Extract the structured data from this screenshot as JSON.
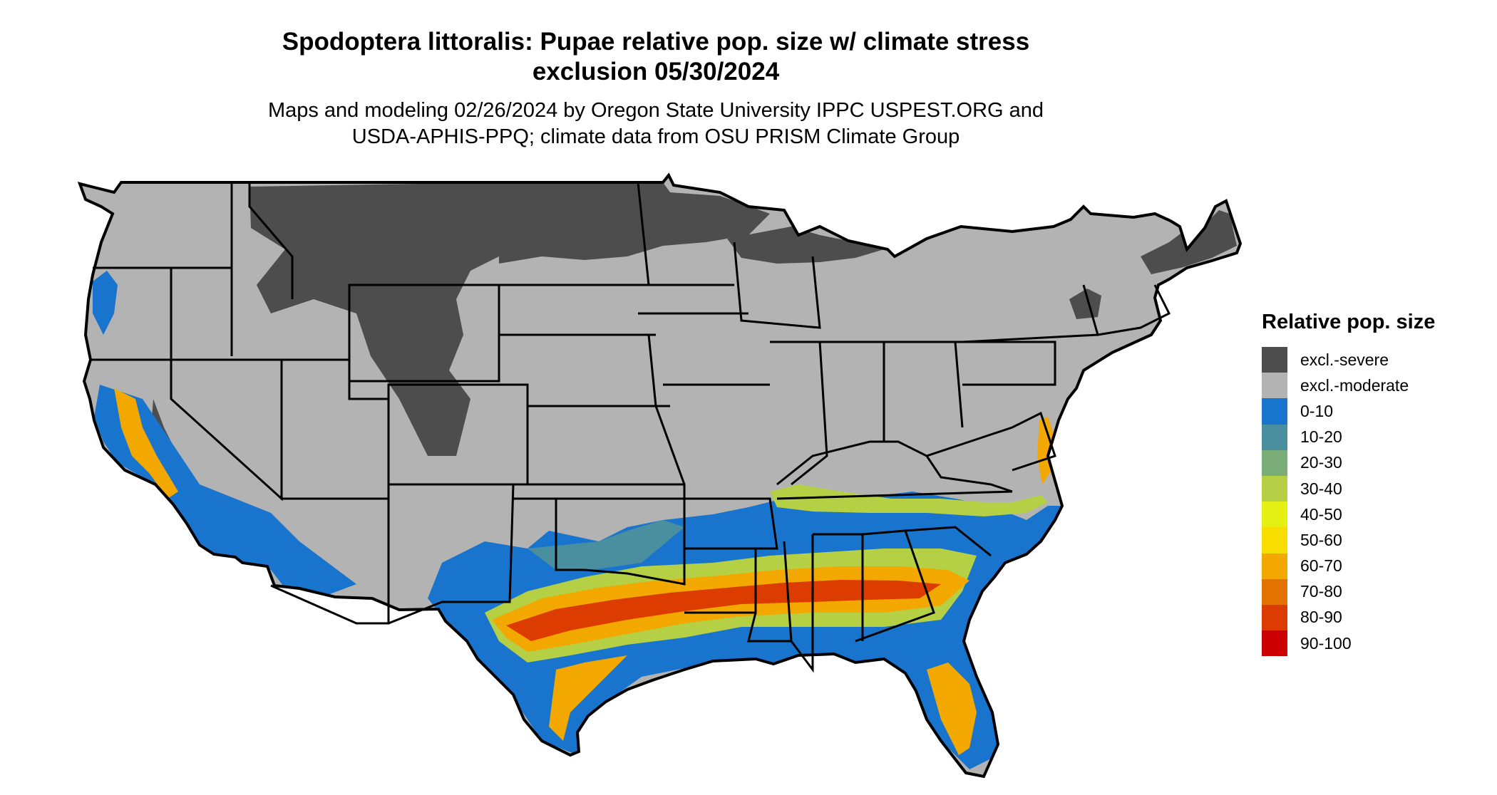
{
  "title": {
    "line1": "Spodoptera littoralis: Pupae relative pop. size w/ climate stress",
    "line2": "exclusion 05/30/2024"
  },
  "subtitle": {
    "line1": "Maps and modeling 02/26/2024 by Oregon State University IPPC USPEST.ORG and",
    "line2": "USDA-APHIS-PPQ; climate data from OSU PRISM Climate Group"
  },
  "legend": {
    "title": "Relative pop. size",
    "items": [
      {
        "label": "excl.-severe",
        "color": "#4d4d4d"
      },
      {
        "label": "excl.-moderate",
        "color": "#b3b3b3"
      },
      {
        "label": "0-10",
        "color": "#1874cd"
      },
      {
        "label": "10-20",
        "color": "#4a8fa0"
      },
      {
        "label": "20-30",
        "color": "#7aad78"
      },
      {
        "label": "30-40",
        "color": "#b5d045"
      },
      {
        "label": "40-50",
        "color": "#e4ef14"
      },
      {
        "label": "50-60",
        "color": "#f8dd00"
      },
      {
        "label": "60-70",
        "color": "#f3a800"
      },
      {
        "label": "70-80",
        "color": "#e47200"
      },
      {
        "label": "80-90",
        "color": "#dc3c00"
      },
      {
        "label": "90-100",
        "color": "#cc0000"
      }
    ]
  }
}
